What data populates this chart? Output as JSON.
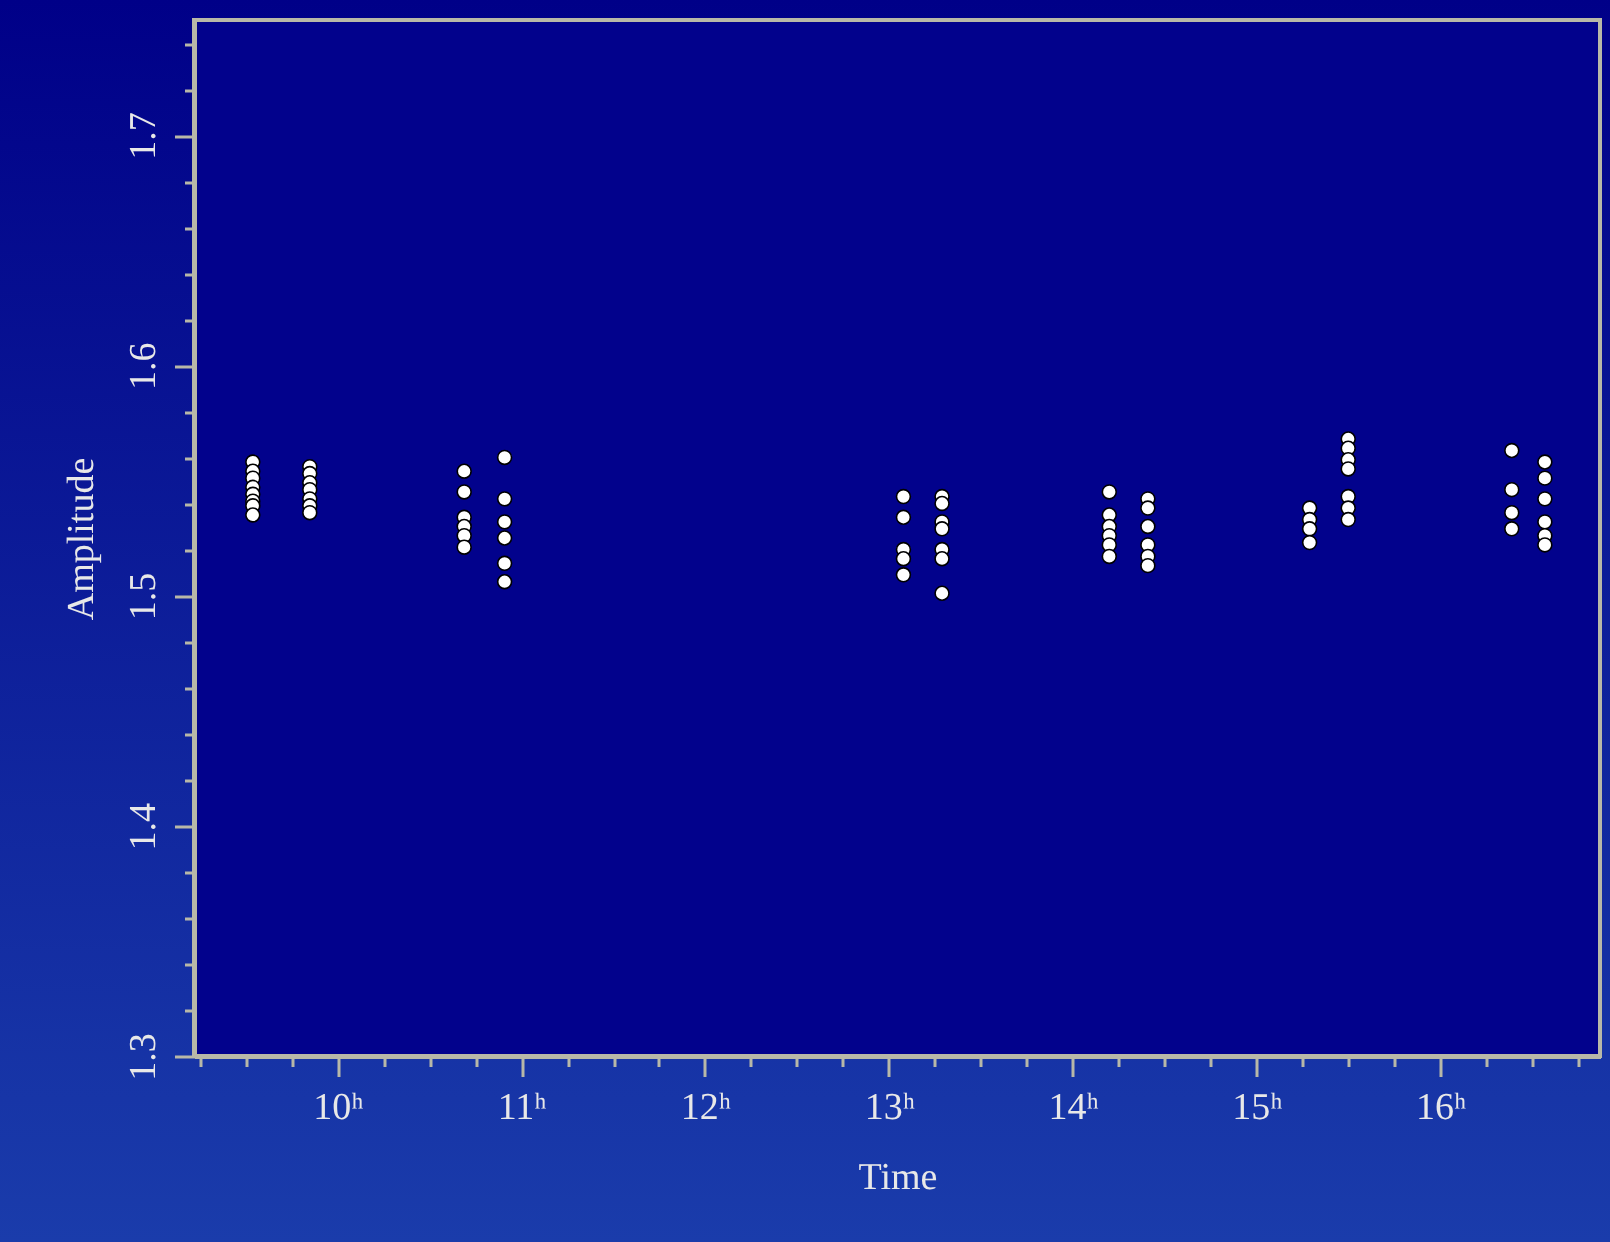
{
  "chart_data": {
    "type": "scatter",
    "xlabel": "Time",
    "ylabel": "Amplitude",
    "xlim": [
      9.22,
      16.87
    ],
    "ylim": [
      1.3,
      1.75
    ],
    "xticks": [
      {
        "value": 9.25,
        "label": null
      },
      {
        "value": 9.5,
        "label": null
      },
      {
        "value": 9.75,
        "label": null
      },
      {
        "value": 10,
        "label": "10ʰ"
      },
      {
        "value": 10.25,
        "label": null
      },
      {
        "value": 10.5,
        "label": null
      },
      {
        "value": 10.75,
        "label": null
      },
      {
        "value": 11,
        "label": "11ʰ"
      },
      {
        "value": 11.25,
        "label": null
      },
      {
        "value": 11.5,
        "label": null
      },
      {
        "value": 11.75,
        "label": null
      },
      {
        "value": 12,
        "label": "12ʰ"
      },
      {
        "value": 12.25,
        "label": null
      },
      {
        "value": 12.5,
        "label": null
      },
      {
        "value": 12.75,
        "label": null
      },
      {
        "value": 13,
        "label": "13ʰ"
      },
      {
        "value": 13.25,
        "label": null
      },
      {
        "value": 13.5,
        "label": null
      },
      {
        "value": 13.75,
        "label": null
      },
      {
        "value": 14,
        "label": "14ʰ"
      },
      {
        "value": 14.25,
        "label": null
      },
      {
        "value": 14.5,
        "label": null
      },
      {
        "value": 14.75,
        "label": null
      },
      {
        "value": 15,
        "label": "15ʰ"
      },
      {
        "value": 15.25,
        "label": null
      },
      {
        "value": 15.5,
        "label": null
      },
      {
        "value": 15.75,
        "label": null
      },
      {
        "value": 16,
        "label": "16ʰ"
      },
      {
        "value": 16.25,
        "label": null
      },
      {
        "value": 16.5,
        "label": null
      },
      {
        "value": 16.75,
        "label": null
      }
    ],
    "yticks": [
      1.3,
      {
        "value": 1.32,
        "label": null
      },
      {
        "value": 1.34,
        "label": null
      },
      {
        "value": 1.36,
        "label": null
      },
      {
        "value": 1.38,
        "label": null
      },
      1.4,
      {
        "value": 1.42,
        "label": null
      },
      {
        "value": 1.44,
        "label": null
      },
      {
        "value": 1.46,
        "label": null
      },
      {
        "value": 1.48,
        "label": null
      },
      1.5,
      {
        "value": 1.52,
        "label": null
      },
      {
        "value": 1.54,
        "label": null
      },
      {
        "value": 1.56,
        "label": null
      },
      {
        "value": 1.58,
        "label": null
      },
      1.6,
      {
        "value": 1.62,
        "label": null
      },
      {
        "value": 1.64,
        "label": null
      },
      {
        "value": 1.66,
        "label": null
      },
      {
        "value": 1.68,
        "label": null
      },
      1.7,
      {
        "value": 1.72,
        "label": null
      },
      {
        "value": 1.74,
        "label": null
      }
    ],
    "grid": false,
    "marker": "circle",
    "series": [
      {
        "color": "#ffffff",
        "x": [
          9.54,
          9.54,
          9.54,
          9.54,
          9.54,
          9.54,
          9.54,
          9.54,
          9.85,
          9.85,
          9.85,
          9.85,
          9.85,
          9.85,
          9.85,
          10.69,
          10.69,
          10.69,
          10.69,
          10.69,
          10.69,
          10.91,
          10.91,
          10.91,
          10.91,
          10.91,
          10.91,
          13.08,
          13.08,
          13.08,
          13.08,
          13.08,
          13.29,
          13.29,
          13.29,
          13.29,
          13.29,
          13.29,
          13.29,
          14.2,
          14.2,
          14.2,
          14.2,
          14.2,
          14.2,
          14.41,
          14.41,
          14.41,
          14.41,
          14.41,
          14.41,
          15.29,
          15.29,
          15.29,
          15.29,
          15.5,
          15.5,
          15.5,
          15.5,
          15.5,
          15.5,
          15.5,
          16.39,
          16.39,
          16.39,
          16.39,
          16.57,
          16.57,
          16.57,
          16.57,
          16.57,
          16.57
        ],
        "values": [
          1.558,
          1.554,
          1.551,
          1.547,
          1.544,
          1.541,
          1.539,
          1.535,
          1.556,
          1.553,
          1.549,
          1.546,
          1.542,
          1.539,
          1.536,
          1.554,
          1.545,
          1.534,
          1.53,
          1.526,
          1.521,
          1.56,
          1.542,
          1.532,
          1.525,
          1.514,
          1.506,
          1.543,
          1.534,
          1.52,
          1.516,
          1.509,
          1.543,
          1.54,
          1.532,
          1.529,
          1.52,
          1.516,
          1.501,
          1.545,
          1.535,
          1.53,
          1.526,
          1.522,
          1.517,
          1.542,
          1.538,
          1.53,
          1.522,
          1.517,
          1.513,
          1.538,
          1.533,
          1.529,
          1.523,
          1.568,
          1.564,
          1.559,
          1.555,
          1.543,
          1.538,
          1.533,
          1.563,
          1.546,
          1.536,
          1.529,
          1.558,
          1.551,
          1.542,
          1.532,
          1.526,
          1.522
        ]
      }
    ]
  }
}
